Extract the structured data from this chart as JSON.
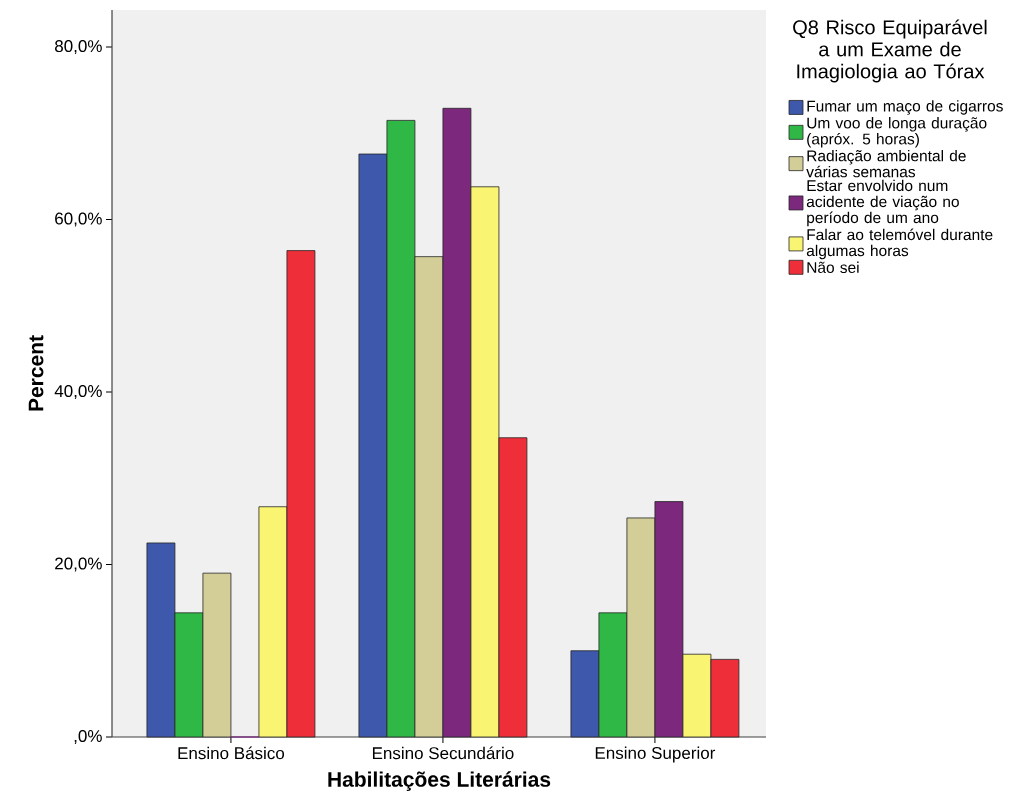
{
  "chart_data": {
    "type": "bar",
    "categories": [
      "Ensino Básico",
      "Ensino Secundário",
      "Ensino Superior"
    ],
    "series": [
      {
        "name": "Fumar um maço de cigarros",
        "color": "#3e58ac",
        "values": [
          22.5,
          67.6,
          10.0
        ]
      },
      {
        "name": "Um voo de longa duração (apróx. 5 horas)",
        "color": "#2fb846",
        "values": [
          14.4,
          71.5,
          14.4
        ]
      },
      {
        "name": "Radiação ambiental de várias semanas",
        "color": "#d3ce97",
        "values": [
          19.0,
          55.7,
          25.4
        ]
      },
      {
        "name": "Estar envolvido num acidente de viação no período de um ano",
        "color": "#7b287d",
        "values": [
          0,
          72.9,
          27.3
        ]
      },
      {
        "name": "Falar ao telemóvel durante algumas horas",
        "color": "#f9f471",
        "values": [
          26.7,
          63.8,
          9.6
        ]
      },
      {
        "name": "Não sei",
        "color": "#ee2e38",
        "values": [
          56.4,
          34.7,
          9.0
        ]
      }
    ],
    "xlabel": "Habilitações Literárias",
    "ylabel": "Percent",
    "legend_title": "Q8 Risco Equiparável a um Exame de Imagiologia ao Tórax",
    "legend": "right",
    "ylim": [
      0,
      84.3
    ],
    "yticks": [
      {
        "value": 0,
        "label": ",0%"
      },
      {
        "value": 20,
        "label": "20,0%"
      },
      {
        "value": 40,
        "label": "40,0%"
      },
      {
        "value": 60,
        "label": "60,0%"
      },
      {
        "value": 80,
        "label": "80,0%"
      }
    ]
  }
}
